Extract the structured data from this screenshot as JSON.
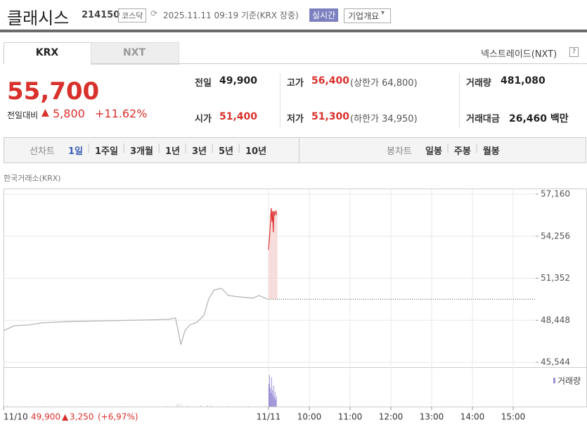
{
  "header": {
    "name": "클래시스",
    "code": "214150",
    "market": "코스닥",
    "timestamp": "2025.11.11 09:19 기준(KRX 장중)",
    "realtime": "실시간",
    "company": "기업개요"
  },
  "tabs": [
    "KRX",
    "NXT"
  ],
  "nxt_link": "넥스트레이드(NXT)",
  "price": {
    "current": "55,700",
    "change_label": "전일대비",
    "change": "5,800",
    "change_pct": "+11.62%"
  },
  "stats": [
    {
      "label": "전일",
      "value": "49,900"
    },
    {
      "label": "고가",
      "value": "56,400",
      "note": "(상한가 64,800)"
    },
    {
      "label": "거래량",
      "value": "481,080"
    },
    {
      "label": "시가",
      "value": "51,400"
    },
    {
      "label": "저가",
      "value": "51,300",
      "note": "(하한가 34,950)"
    },
    {
      "label": "거래대금",
      "value": "26,460 백만"
    }
  ],
  "toolbar": {
    "line_label": "선차트",
    "line_ranges": [
      "1일",
      "1주일",
      "3개월",
      "1년",
      "3년",
      "5년",
      "10년"
    ],
    "candle_label": "봉차트",
    "candle_ranges": [
      "일봉",
      "주봉",
      "월봉"
    ]
  },
  "chart_data": {
    "type": "line",
    "source": "한국거래소(KRX)",
    "series": [
      {
        "color": "#b5b5b5",
        "x": [
          0,
          16,
          36,
          57,
          98,
          150,
          202,
          243,
          253,
          257,
          261,
          267,
          274,
          285,
          295,
          302,
          310,
          321,
          331,
          347,
          367,
          376,
          389
        ],
        "values": [
          47730,
          48070,
          48120,
          48270,
          48360,
          48410,
          48460,
          48510,
          48610,
          47730,
          46760,
          47730,
          48120,
          48320,
          48800,
          49920,
          50550,
          50650,
          50160,
          50060,
          49970,
          50160,
          49900
        ]
      },
      {
        "color": "#e03a3a",
        "x": [
          390,
          392,
          393,
          394,
          395,
          396,
          397,
          398,
          399,
          401,
          402
        ],
        "values": [
          53320,
          54530,
          55510,
          56190,
          55260,
          55990,
          54530,
          55990,
          55750,
          55990,
          55700
        ]
      }
    ],
    "area_color": "#f7d9d9",
    "base_value": 49900,
    "xlim": [
      0,
      780
    ],
    "ylim": [
      45544,
      57160
    ],
    "yticks": [
      {
        "value": 45544,
        "label": "45,544"
      },
      {
        "value": 48448,
        "label": "48,448"
      },
      {
        "value": 51352,
        "label": "51,352"
      },
      {
        "value": 54256,
        "label": "54,256"
      },
      {
        "value": 57160,
        "label": "57,160"
      }
    ],
    "xticks": [
      {
        "value": 0,
        "label": "11/10"
      },
      {
        "value": 390,
        "label": "11/11"
      },
      {
        "value": 450,
        "label": "10:00"
      },
      {
        "value": 510,
        "label": "11:00"
      },
      {
        "value": 570,
        "label": "12:00"
      },
      {
        "value": 630,
        "label": "13:00"
      },
      {
        "value": 690,
        "label": "14:00"
      },
      {
        "value": 750,
        "label": "15:00"
      }
    ],
    "grid": true,
    "volume": {
      "name": "거래량",
      "ylim": [
        0,
        45000
      ],
      "series": [
        {
          "color": "#cccccc",
          "x": [
            0,
            5,
            30,
            60,
            120,
            180,
            240,
            255,
            258,
            262,
            270,
            290,
            300,
            305,
            330,
            360,
            385
          ],
          "values": [
            3000,
            1500,
            800,
            700,
            500,
            600,
            700,
            3500,
            4000,
            2500,
            1500,
            1800,
            2500,
            2000,
            1000,
            900,
            1500
          ]
        },
        {
          "color": "#9b8fd6",
          "x": [
            390,
            391,
            392,
            393,
            394,
            395,
            396,
            397,
            398,
            399,
            400,
            401
          ],
          "values": [
            30000,
            42000,
            25000,
            18000,
            39000,
            22000,
            15000,
            28000,
            12000,
            20000,
            9000,
            14000
          ]
        }
      ]
    },
    "footer": {
      "close": "49,900",
      "change": "3,250",
      "change_pct": "(+6,97%)"
    }
  }
}
